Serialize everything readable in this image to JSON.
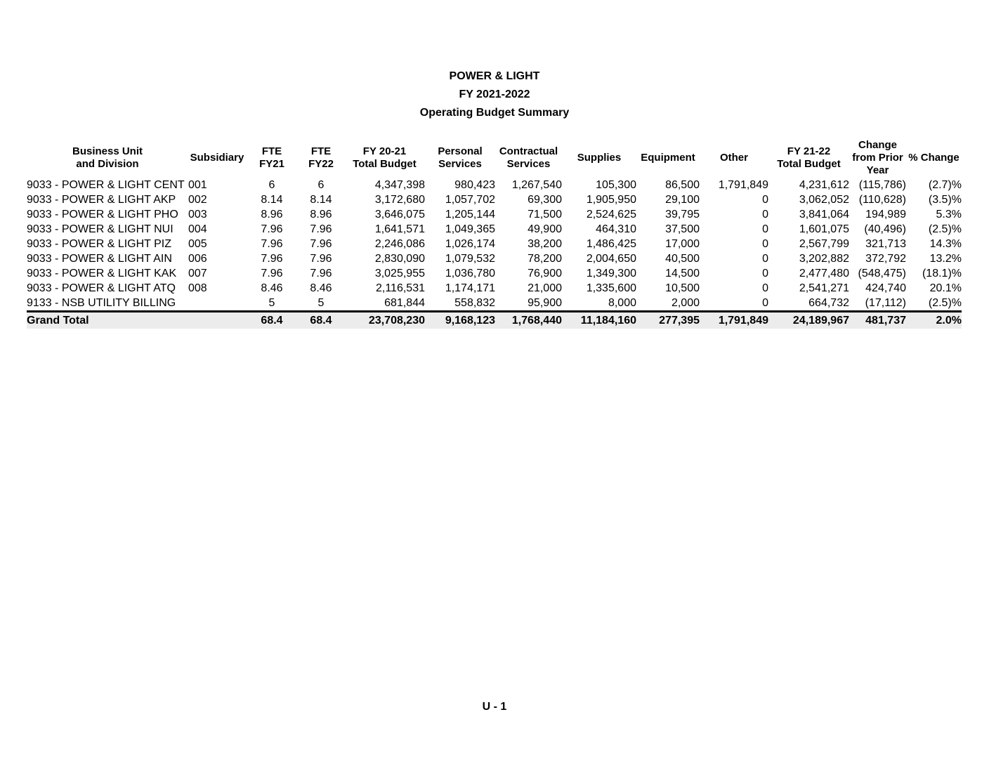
{
  "titles": {
    "line1": "POWER & LIGHT",
    "line2": "FY 2021-2022",
    "line3": "Operating Budget Summary"
  },
  "table": {
    "headers": [
      "Business Unit\nand Division",
      "Subsidiary",
      "FTE\nFY21",
      "FTE\nFY22",
      "FY 20-21\nTotal Budget",
      "Personal\nServices",
      "Contractual\nServices",
      "Supplies",
      "Equipment",
      "Other",
      "FY 21-22\nTotal Budget",
      "Change\nfrom Prior\nYear",
      "% Change"
    ],
    "rows": [
      [
        "9033 - POWER & LIGHT CENT",
        "001",
        "6",
        "6",
        "4,347,398",
        "980,423",
        "1,267,540",
        "105,300",
        "86,500",
        "1,791,849",
        "4,231,612",
        "(115,786)",
        "(2.7)%"
      ],
      [
        "9033 - POWER & LIGHT AKP",
        "002",
        "8.14",
        "8.14",
        "3,172,680",
        "1,057,702",
        "69,300",
        "1,905,950",
        "29,100",
        "0",
        "3,062,052",
        "(110,628)",
        "(3.5)%"
      ],
      [
        "9033 - POWER & LIGHT PHO",
        "003",
        "8.96",
        "8.96",
        "3,646,075",
        "1,205,144",
        "71,500",
        "2,524,625",
        "39,795",
        "0",
        "3,841,064",
        "194,989",
        "5.3%"
      ],
      [
        "9033 - POWER & LIGHT NUI",
        "004",
        "7.96",
        "7.96",
        "1,641,571",
        "1,049,365",
        "49,900",
        "464,310",
        "37,500",
        "0",
        "1,601,075",
        "(40,496)",
        "(2.5)%"
      ],
      [
        "9033 - POWER & LIGHT PIZ",
        "005",
        "7.96",
        "7.96",
        "2,246,086",
        "1,026,174",
        "38,200",
        "1,486,425",
        "17,000",
        "0",
        "2,567,799",
        "321,713",
        "14.3%"
      ],
      [
        "9033 - POWER & LIGHT AIN",
        "006",
        "7.96",
        "7.96",
        "2,830,090",
        "1,079,532",
        "78,200",
        "2,004,650",
        "40,500",
        "0",
        "3,202,882",
        "372,792",
        "13.2%"
      ],
      [
        "9033 - POWER & LIGHT KAK",
        "007",
        "7.96",
        "7.96",
        "3,025,955",
        "1,036,780",
        "76,900",
        "1,349,300",
        "14,500",
        "0",
        "2,477,480",
        "(548,475)",
        "(18.1)%"
      ],
      [
        "9033 - POWER & LIGHT ATQ",
        "008",
        "8.46",
        "8.46",
        "2,116,531",
        "1,174,171",
        "21,000",
        "1,335,600",
        "10,500",
        "0",
        "2,541,271",
        "424,740",
        "20.1%"
      ],
      [
        "9133 - NSB UTILITY BILLING",
        "",
        "5",
        "5",
        "681,844",
        "558,832",
        "95,900",
        "8,000",
        "2,000",
        "0",
        "664,732",
        "(17,112)",
        "(2.5)%"
      ]
    ],
    "grand_total": [
      "Grand Total",
      "",
      "68.4",
      "68.4",
      "23,708,230",
      "9,168,123",
      "1,768,440",
      "11,184,160",
      "277,395",
      "1,791,849",
      "24,189,967",
      "481,737",
      "2.0%"
    ]
  },
  "footer": {
    "page_label": "U - 1"
  }
}
